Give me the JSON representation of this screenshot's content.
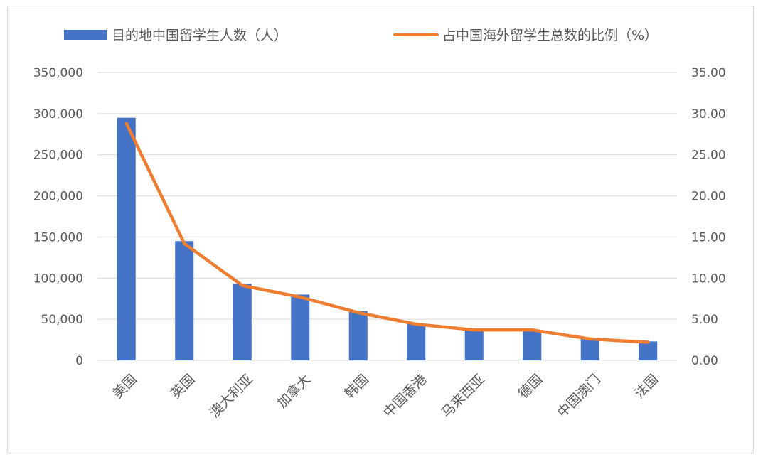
{
  "chart_data": {
    "type": "bar+line",
    "categories": [
      "美国",
      "英国",
      "澳大利亚",
      "加拿大",
      "韩国",
      "中国香港",
      "马来西亚",
      "德国",
      "中国澳门",
      "法国"
    ],
    "series": [
      {
        "name": "目的地中国留学生人数（人）",
        "type": "bar",
        "axis": "left",
        "color": "#4472C4",
        "values": [
          295000,
          145000,
          93000,
          80000,
          60000,
          45000,
          38000,
          37000,
          27000,
          23000
        ]
      },
      {
        "name": "占中国海外留学生总数的比例（%）",
        "type": "line",
        "axis": "right",
        "color": "#ED7D31",
        "values": [
          28.8,
          14.2,
          9.1,
          7.7,
          5.8,
          4.4,
          3.7,
          3.7,
          2.6,
          2.2
        ]
      }
    ],
    "y_left": {
      "min": 0,
      "max": 350000,
      "ticks": [
        "0",
        "50,000",
        "100,000",
        "150,000",
        "200,000",
        "250,000",
        "300,000",
        "350,000"
      ]
    },
    "y_right": {
      "min": 0,
      "max": 35,
      "ticks": [
        "0.00",
        "5.00",
        "10.00",
        "15.00",
        "20.00",
        "25.00",
        "30.00",
        "35.00"
      ]
    },
    "grid": true,
    "legend_position": "top"
  }
}
